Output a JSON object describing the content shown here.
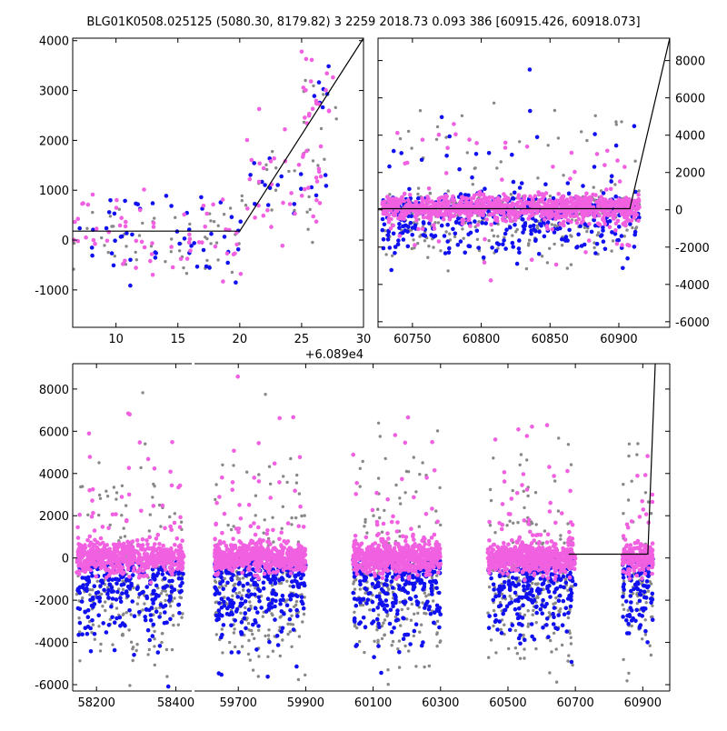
{
  "figure_title": "BLG01K0508.025125 (5080.30, 8179.82)   3 2259 2018.73 0.093 386 [60915.426, 60918.073]",
  "colors": {
    "pink": "#f060e0",
    "blue": "#1010f0",
    "gray": "#888888",
    "model": "#000000"
  },
  "chart_data": [
    {
      "id": "zoom",
      "type": "scatter",
      "xlim": [
        6.5,
        30
      ],
      "ylim": [
        -1750,
        4050
      ],
      "xticks": [
        10,
        15,
        20,
        25,
        30
      ],
      "yticks": [
        -1000,
        0,
        1000,
        2000,
        3000,
        4000
      ],
      "x_offset_label": "+6.089e4",
      "y_side": "left",
      "model_line": [
        [
          6.5,
          180
        ],
        [
          20.0,
          180
        ],
        [
          30.0,
          4050
        ]
      ],
      "clusters": [
        {
          "x": [
            6.5,
            20
          ],
          "y_center": 100,
          "y_spread": 700,
          "n_pink": 60,
          "n_blue": 50,
          "n_gray": 50
        },
        {
          "x": [
            20,
            27
          ],
          "y_center": 1200,
          "y_spread": 900,
          "n_pink": 40,
          "n_blue": 20,
          "n_gray": 25
        },
        {
          "x": [
            25,
            28
          ],
          "y_center": 2800,
          "y_spread": 600,
          "n_pink": 20,
          "n_blue": 6,
          "n_gray": 6
        }
      ]
    },
    {
      "id": "recent",
      "type": "scatter",
      "xlim": [
        60725,
        60937
      ],
      "ylim": [
        -6300,
        9200
      ],
      "xticks": [
        60750,
        60800,
        60850,
        60900
      ],
      "yticks": [
        -6000,
        -4000,
        -2000,
        0,
        2000,
        4000,
        6000,
        8000
      ],
      "y_side": "right",
      "model_line": [
        [
          60725,
          60
        ],
        [
          60908,
          60
        ],
        [
          60937,
          9200
        ]
      ],
      "clusters": [
        {
          "x": [
            60728,
            60915
          ],
          "y_center": 100,
          "y_spread": 550,
          "n_pink": 900,
          "n_blue": 200,
          "n_gray": 200
        },
        {
          "x": [
            60728,
            60915
          ],
          "y_center": -900,
          "y_spread": 1600,
          "n_pink": 60,
          "n_blue": 260,
          "n_gray": 170
        },
        {
          "x": [
            60728,
            60915
          ],
          "y_center": 3000,
          "y_spread": 2400,
          "n_pink": 25,
          "n_blue": 25,
          "n_gray": 30
        }
      ]
    },
    {
      "id": "full",
      "type": "scatter",
      "broken_axis": true,
      "ylim": [
        -6300,
        9200
      ],
      "yticks": [
        -6000,
        -4000,
        -2000,
        0,
        2000,
        4000,
        6000,
        8000
      ],
      "y_side": "left",
      "segments": [
        {
          "xlim": [
            58140,
            58440
          ],
          "xticks": [
            58200,
            58400
          ],
          "blocks": [
            [
              58150,
              58420
            ]
          ]
        },
        {
          "xlim": [
            59570,
            60980
          ],
          "xticks": [
            59700,
            59900,
            60100,
            60300,
            60500,
            60700,
            60900
          ],
          "blocks": [
            [
              59630,
              59900
            ],
            [
              60040,
              60300
            ],
            [
              60440,
              60700
            ],
            [
              60840,
              60930
            ]
          ]
        }
      ],
      "model_line": [
        [
          60680,
          180
        ],
        [
          60915,
          180
        ],
        [
          60937,
          9200
        ]
      ],
      "cluster_profile": {
        "y_center": 0,
        "core_spread": 500,
        "lower_spread": 1800,
        "upper_spread": 2600
      }
    }
  ]
}
